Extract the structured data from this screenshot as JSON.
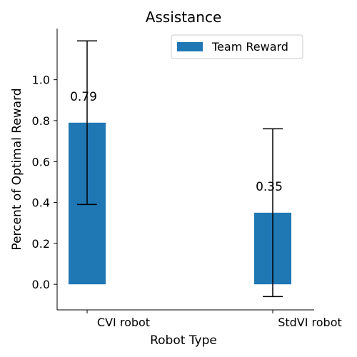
{
  "chart_data": {
    "type": "bar",
    "title": "Assistance",
    "xlabel": "Robot Type",
    "ylabel": "Percent of Optimal Reward",
    "categories": [
      "CVI robot",
      "StdVI robot"
    ],
    "series": [
      {
        "name": "Team Reward",
        "values": [
          0.79,
          0.35
        ],
        "error_low": [
          0.39,
          -0.06
        ],
        "error_high": [
          1.19,
          0.76
        ],
        "data_labels": [
          "0.79",
          "0.35"
        ],
        "color": "#1f77b4"
      }
    ],
    "yticks": [
      0.0,
      0.2,
      0.4,
      0.6,
      0.8,
      1.0
    ],
    "ytick_labels": [
      "0.0",
      "0.2",
      "0.4",
      "0.6",
      "0.8",
      "1.0"
    ],
    "ylim": [
      -0.125,
      1.25
    ],
    "grid": false,
    "legend_position": "top-right"
  }
}
